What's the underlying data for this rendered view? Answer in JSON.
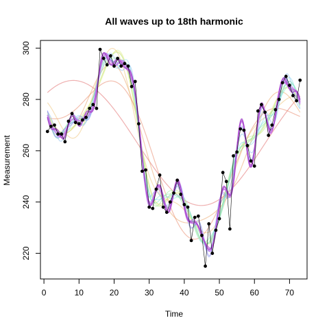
{
  "chart_data": {
    "type": "line",
    "title": "All waves up to 18th harmonic",
    "xlabel": "Time",
    "ylabel": "Measurement",
    "xlim": [
      -1,
      75
    ],
    "ylim": [
      210,
      303
    ],
    "xticks": [
      0,
      10,
      20,
      30,
      40,
      50,
      60,
      70
    ],
    "yticks": [
      220,
      240,
      260,
      280,
      300
    ],
    "grid": false,
    "legend": "none",
    "harmonics_max": 18,
    "observed": {
      "x": [
        1,
        2,
        3,
        4,
        5,
        6,
        7,
        8,
        9,
        10,
        11,
        12,
        13,
        14,
        15,
        16,
        17,
        18,
        19,
        20,
        21,
        22,
        23,
        24,
        25,
        26,
        27,
        28,
        29,
        30,
        31,
        32,
        33,
        34,
        35,
        36,
        37,
        38,
        39,
        40,
        41,
        42,
        43,
        44,
        45,
        46,
        47,
        48,
        49,
        50,
        51,
        52,
        53,
        54,
        55,
        56,
        57,
        58,
        59,
        60,
        61,
        62,
        63,
        64,
        65,
        66,
        67,
        68,
        69,
        70,
        71,
        72,
        73
      ],
      "y": [
        267.5,
        269.5,
        270,
        266.5,
        266.5,
        263.5,
        271.5,
        274.5,
        271,
        270.5,
        272,
        273,
        276.5,
        278,
        276.5,
        299.5,
        296,
        293.5,
        297,
        293,
        296,
        293,
        294,
        293,
        285,
        287,
        270.5,
        252,
        252.5,
        238,
        237.5,
        245,
        250.5,
        238,
        236,
        240,
        243.5,
        248.5,
        243,
        239,
        238,
        225,
        234,
        234.5,
        227,
        215,
        231.5,
        220,
        229,
        233.5,
        251.5,
        248,
        229.5,
        258,
        259.5,
        268.5,
        268,
        262,
        256,
        254,
        275.5,
        278,
        275,
        266,
        270,
        276,
        280,
        286.5,
        289,
        285.5,
        281.5,
        279.5,
        287.5
      ]
    },
    "colors": {
      "observed": "#000000",
      "harmonics": [
        "#e06060",
        "#e88060",
        "#eaa060",
        "#eec070",
        "#eee080",
        "#d8ee80",
        "#b8ee80",
        "#98ee90",
        "#80eeb0",
        "#80eed0",
        "#80d8ee",
        "#80b8ee",
        "#8098ee",
        "#9080ee",
        "#b080ee",
        "#d080ee",
        "#c060d8",
        "#a040c8"
      ]
    }
  }
}
